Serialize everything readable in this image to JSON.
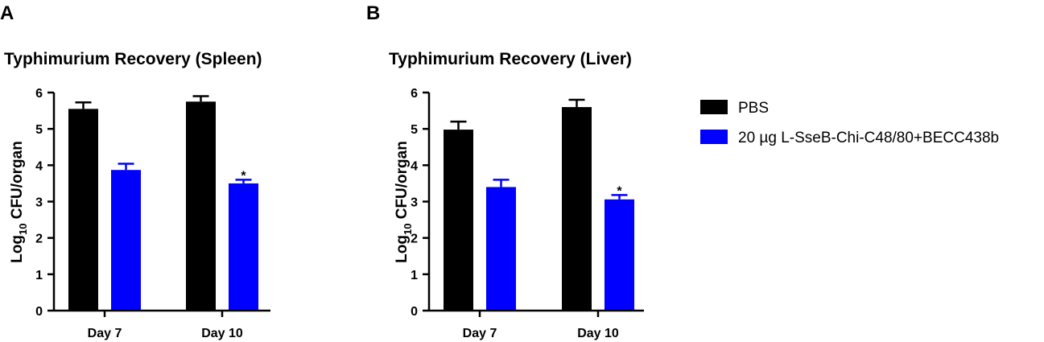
{
  "panel_letters": [
    "A",
    "B"
  ],
  "ylabel_main": "Log",
  "ylabel_sub": "10",
  "ylabel_rest": " CFU/organ",
  "legend": {
    "position": "right",
    "entries": [
      {
        "label": "PBS",
        "color": "#000000"
      },
      {
        "label": "20 µg L-SseB-Chi-C48/80+BECC438b",
        "color": "#0000ff"
      }
    ]
  },
  "chart_data": [
    {
      "type": "bar",
      "title": "Typhimurium Recovery (Spleen)",
      "categories": [
        "Day 7",
        "Day 10"
      ],
      "ylim": [
        0,
        6
      ],
      "yticks": [
        0,
        1,
        2,
        3,
        4,
        5,
        6
      ],
      "series": [
        {
          "name": "PBS",
          "color": "#000000",
          "values": [
            5.55,
            5.75
          ],
          "errors": [
            0.18,
            0.15
          ]
        },
        {
          "name": "20 µg L-SseB-Chi-C48/80+BECC438b",
          "color": "#0000ff",
          "values": [
            3.87,
            3.5
          ],
          "errors": [
            0.17,
            0.1
          ]
        }
      ],
      "annotations": [
        {
          "category": "Day 10",
          "series": 1,
          "text": "*"
        }
      ],
      "grid": false
    },
    {
      "type": "bar",
      "title": "Typhimurium Recovery (Liver)",
      "categories": [
        "Day 7",
        "Day 10"
      ],
      "ylim": [
        0,
        6
      ],
      "yticks": [
        0,
        1,
        2,
        3,
        4,
        5,
        6
      ],
      "series": [
        {
          "name": "PBS",
          "color": "#000000",
          "values": [
            4.98,
            5.6
          ],
          "errors": [
            0.22,
            0.2
          ]
        },
        {
          "name": "20 µg L-SseB-Chi-C48/80+BECC438b",
          "color": "#0000ff",
          "values": [
            3.4,
            3.06
          ],
          "errors": [
            0.2,
            0.12
          ]
        }
      ],
      "annotations": [
        {
          "category": "Day 10",
          "series": 1,
          "text": "*"
        }
      ],
      "grid": false
    }
  ]
}
